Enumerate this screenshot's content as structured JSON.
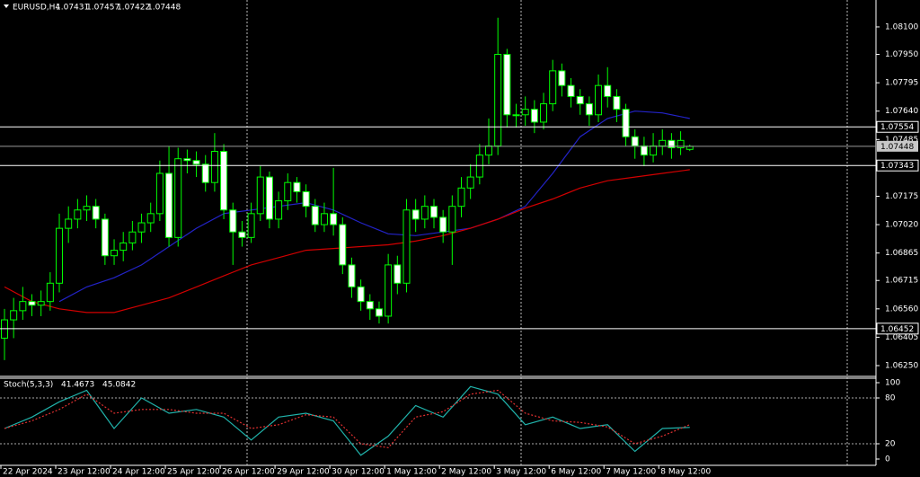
{
  "chart_data": {
    "type": "candlestick",
    "symbol": "EURUSD,H4",
    "open": [
      1.064,
      1.065,
      1.0655,
      1.066,
      1.0658,
      1.066,
      1.067,
      1.07,
      1.0705,
      1.071,
      1.0712,
      1.0705,
      1.0685,
      1.0688,
      1.0692,
      1.0698,
      1.0703,
      1.0708,
      1.073,
      1.0695,
      1.0738,
      1.0737,
      1.0735,
      1.0725,
      1.0742,
      1.071,
      1.0698,
      1.0695,
      1.0708,
      1.0728,
      1.0705,
      1.0715,
      1.0725,
      1.072,
      1.0712,
      1.0702,
      1.0708,
      1.0702,
      1.068,
      1.0668,
      1.066,
      1.0656,
      1.0652,
      1.068,
      1.067,
      1.071,
      1.0705,
      1.0712,
      1.0706,
      1.0698,
      1.0712,
      1.0722,
      1.0728,
      1.074,
      1.0745,
      1.0795,
      1.0762,
      1.0762,
      1.0765,
      1.0758,
      1.0768,
      1.0786,
      1.0778,
      1.0772,
      1.0768,
      1.0762,
      1.0778,
      1.0772,
      1.0765,
      1.075,
      1.0745,
      1.074,
      1.0745,
      1.0748,
      1.0744,
      1.07431
    ],
    "high": [
      1.0656,
      1.0662,
      1.0668,
      1.0664,
      1.0666,
      1.0676,
      1.0708,
      1.0712,
      1.0716,
      1.0718,
      1.0716,
      1.0708,
      1.0694,
      1.0698,
      1.0704,
      1.0708,
      1.0714,
      1.0737,
      1.0745,
      1.0744,
      1.0743,
      1.0742,
      1.074,
      1.0752,
      1.0746,
      1.0714,
      1.0704,
      1.0714,
      1.0734,
      1.0731,
      1.072,
      1.073,
      1.0728,
      1.0724,
      1.0716,
      1.0714,
      1.0733,
      1.0706,
      1.0684,
      1.0672,
      1.0664,
      1.066,
      1.0686,
      1.0685,
      1.0716,
      1.0716,
      1.0718,
      1.0716,
      1.071,
      1.0718,
      1.0728,
      1.0735,
      1.0746,
      1.076,
      1.0815,
      1.0798,
      1.0768,
      1.0772,
      1.077,
      1.0774,
      1.0792,
      1.079,
      1.0782,
      1.0776,
      1.0772,
      1.0784,
      1.0788,
      1.0776,
      1.0768,
      1.0754,
      1.075,
      1.0752,
      1.0754,
      1.0752,
      1.0753,
      1.07457
    ],
    "low": [
      1.0628,
      1.064,
      1.065,
      1.0652,
      1.0652,
      1.0655,
      1.0665,
      1.0692,
      1.07,
      1.0704,
      1.07,
      1.068,
      1.068,
      1.0682,
      1.0688,
      1.0692,
      1.0698,
      1.0704,
      1.069,
      1.069,
      1.073,
      1.0728,
      1.072,
      1.072,
      1.0705,
      1.068,
      1.069,
      1.0692,
      1.0704,
      1.07,
      1.07,
      1.071,
      1.0714,
      1.0706,
      1.0698,
      1.0698,
      1.0696,
      1.0675,
      1.0662,
      1.0655,
      1.065,
      1.0648,
      1.0648,
      1.0664,
      1.0665,
      1.0698,
      1.07,
      1.07,
      1.0692,
      1.068,
      1.0706,
      1.0716,
      1.0724,
      1.0735,
      1.074,
      1.0755,
      1.0755,
      1.0756,
      1.0752,
      1.0754,
      1.0764,
      1.0772,
      1.0766,
      1.0762,
      1.0756,
      1.0758,
      1.0766,
      1.0758,
      1.0745,
      1.0738,
      1.0734,
      1.0736,
      1.074,
      1.0738,
      1.074,
      1.07422
    ],
    "close": [
      1.065,
      1.0655,
      1.066,
      1.0658,
      1.066,
      1.067,
      1.07,
      1.0705,
      1.071,
      1.0712,
      1.0705,
      1.0685,
      1.0688,
      1.0692,
      1.0698,
      1.0703,
      1.0708,
      1.073,
      1.0695,
      1.0738,
      1.0737,
      1.0735,
      1.0725,
      1.0742,
      1.071,
      1.0698,
      1.0695,
      1.0708,
      1.0728,
      1.0705,
      1.0715,
      1.0725,
      1.072,
      1.0712,
      1.0702,
      1.0708,
      1.0702,
      1.068,
      1.0668,
      1.066,
      1.0656,
      1.0652,
      1.068,
      1.067,
      1.071,
      1.0705,
      1.0712,
      1.0706,
      1.0698,
      1.0712,
      1.0722,
      1.0728,
      1.074,
      1.0745,
      1.0795,
      1.0762,
      1.0762,
      1.0765,
      1.0758,
      1.0768,
      1.0786,
      1.0778,
      1.0772,
      1.0768,
      1.0762,
      1.0778,
      1.0772,
      1.0765,
      1.075,
      1.0745,
      1.074,
      1.0745,
      1.0748,
      1.0744,
      1.0748,
      1.07448
    ],
    "categories": [
      "22 Apr 2024",
      null,
      null,
      null,
      null,
      null,
      "23 Apr 12:00",
      null,
      null,
      null,
      null,
      null,
      "24 Apr 12:00",
      null,
      null,
      null,
      null,
      null,
      "25 Apr 12:00",
      null,
      null,
      null,
      null,
      null,
      "26 Apr 12:00",
      null,
      null,
      null,
      null,
      null,
      "29 Apr 12:00",
      null,
      null,
      null,
      null,
      null,
      "30 Apr 12:00",
      null,
      null,
      null,
      null,
      null,
      "1 May 12:00",
      null,
      null,
      null,
      null,
      null,
      "2 May 12:00",
      null,
      null,
      null,
      null,
      null,
      "3 May 12:00",
      null,
      null,
      null,
      null,
      null,
      "6 May 12:00",
      null,
      null,
      null,
      null,
      null,
      "7 May 12:00",
      null,
      null,
      null,
      null,
      null,
      "8 May 12:00",
      null,
      null,
      null
    ],
    "bull_color": "#000000",
    "bear_color": "#ffffff",
    "wick_color": "#00ff00",
    "ylim": [
      1.06196,
      1.08247
    ],
    "yticks": [
      {
        "value": 1.081,
        "label": "1.08100"
      },
      {
        "value": 1.0795,
        "label": "1.07950"
      },
      {
        "value": 1.07795,
        "label": "1.07795"
      },
      {
        "value": 1.0764,
        "label": "1.07640"
      },
      {
        "value": 1.07485,
        "label": "1.07485"
      },
      {
        "value": 1.07175,
        "label": "1.07175"
      },
      {
        "value": 1.0702,
        "label": "1.07020"
      },
      {
        "value": 1.06865,
        "label": "1.06865"
      },
      {
        "value": 1.06715,
        "label": "1.06715"
      },
      {
        "value": 1.0656,
        "label": "1.06560"
      },
      {
        "value": 1.06405,
        "label": "1.06405"
      },
      {
        "value": 1.0625,
        "label": "1.06250"
      }
    ],
    "price_lines": [
      1.07554,
      1.07343,
      1.06452
    ],
    "indicator_x": [
      0,
      3,
      6,
      9,
      12,
      15,
      18,
      21,
      24,
      27,
      30,
      33,
      36,
      39,
      42,
      45,
      48,
      51,
      54,
      57,
      60,
      63,
      66,
      69,
      72,
      75
    ],
    "ma": [
      {
        "color": "#2323c8",
        "values": [
          null,
          null,
          1.066,
          1.0668,
          1.0673,
          1.068,
          1.069,
          1.07,
          1.0708,
          1.071,
          1.0712,
          1.0714,
          1.071,
          1.0703,
          1.0697,
          1.0696,
          1.0698,
          1.07,
          1.0705,
          1.0712,
          1.073,
          1.075,
          1.076,
          1.0764,
          1.0763,
          1.076
        ]
      },
      {
        "color": "#d20000",
        "values": [
          1.0668,
          1.066,
          1.0656,
          1.0654,
          1.0654,
          1.0658,
          1.0662,
          1.0668,
          1.0674,
          1.068,
          1.0684,
          1.0688,
          1.0689,
          1.069,
          1.0691,
          1.0693,
          1.0696,
          1.07,
          1.0705,
          1.0711,
          1.0716,
          1.0722,
          1.0726,
          1.0728,
          1.073,
          1.0732
        ]
      }
    ],
    "stoch": {
      "title": "Stoch(5,3,3)",
      "ylim": [
        0,
        100
      ],
      "yticks": [
        100,
        80,
        20,
        0
      ],
      "levels": [
        80,
        20
      ],
      "main": {
        "color": "#20b2aa",
        "values": [
          40,
          55,
          75,
          90,
          40,
          80,
          60,
          65,
          55,
          25,
          55,
          60,
          50,
          5,
          30,
          70,
          55,
          95,
          85,
          45,
          55,
          40,
          45,
          10,
          40,
          41.4673
        ]
      },
      "signal": {
        "color": "#e03030",
        "values": [
          40,
          50,
          65,
          85,
          60,
          65,
          65,
          60,
          60,
          40,
          45,
          58,
          55,
          20,
          15,
          55,
          62,
          85,
          90,
          60,
          50,
          48,
          42,
          20,
          30,
          45.0842
        ]
      }
    }
  }
}
